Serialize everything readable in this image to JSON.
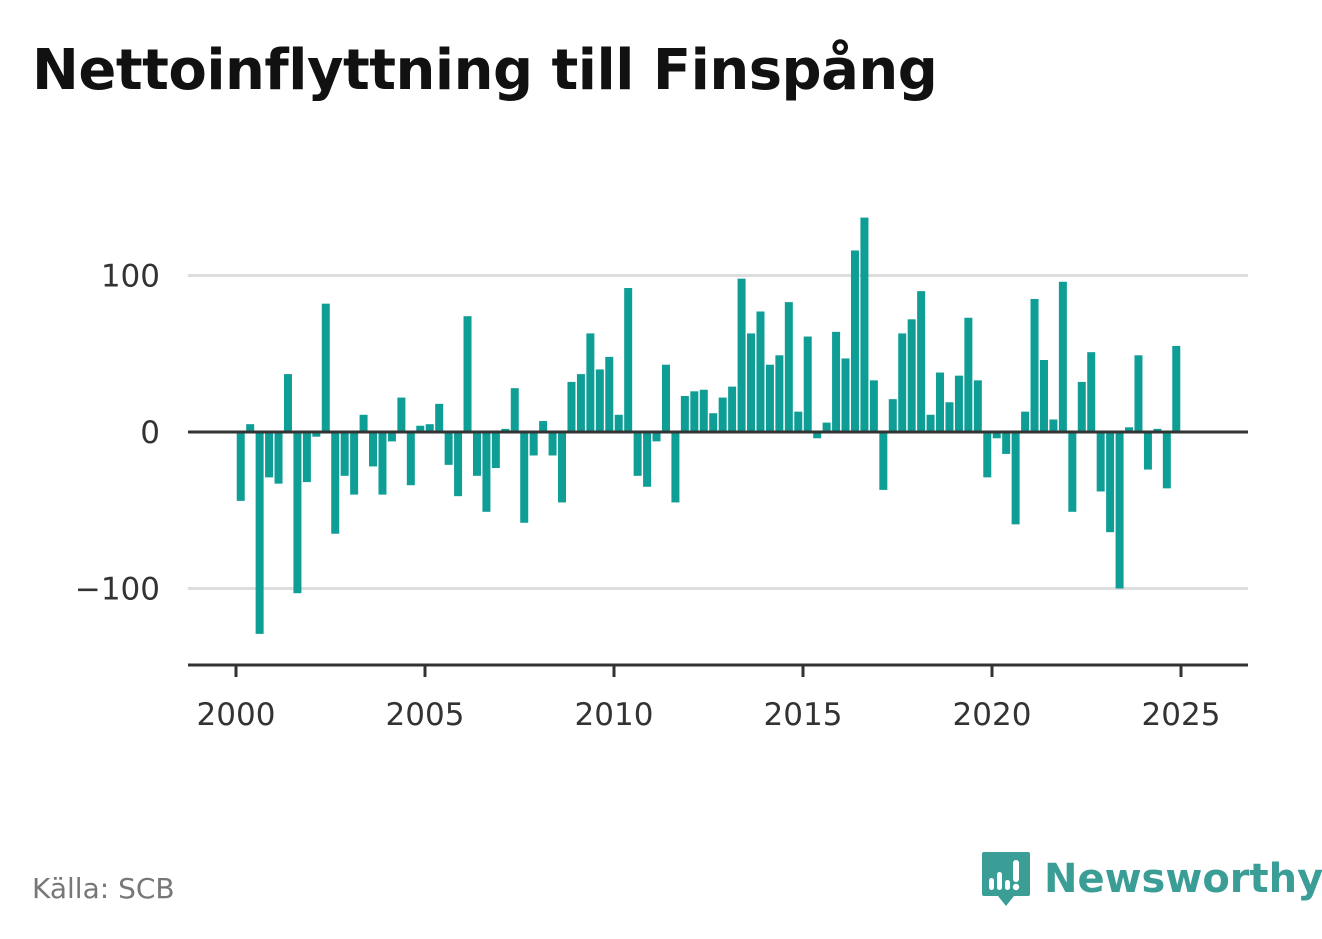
{
  "title": "Nettoinflyttning till Finspång",
  "source": "Källa: SCB",
  "brand": "Newsworthy",
  "colors": {
    "bar": "#0f9e96",
    "axis": "#333333",
    "grid": "#dddddd",
    "brand": "#3a9e96"
  },
  "chart_data": {
    "type": "bar",
    "ylim": [
      -150,
      160
    ],
    "xlim": [
      1999.6,
      2027.0
    ],
    "yticks": [
      100,
      0,
      -100
    ],
    "ytick_labels": [
      "100",
      "0",
      "−100"
    ],
    "xticks": [
      2000,
      2005,
      2010,
      2015,
      2020,
      2025
    ],
    "xtick_labels": [
      "2000",
      "2005",
      "2010",
      "2015",
      "2020",
      "2025"
    ],
    "grid": true,
    "x_start": 2000.125,
    "x_step": 0.25,
    "values": [
      -44,
      5,
      -129,
      -29,
      -33,
      37,
      -103,
      -32,
      -3,
      82,
      -65,
      -28,
      -40,
      11,
      -22,
      -40,
      -6,
      22,
      -34,
      4,
      5,
      18,
      -21,
      -41,
      74,
      -28,
      -51,
      -23,
      2,
      28,
      -58,
      -15,
      7,
      -15,
      -45,
      32,
      37,
      63,
      40,
      48,
      11,
      92,
      -28,
      -35,
      -6,
      43,
      -45,
      23,
      26,
      27,
      12,
      22,
      29,
      98,
      63,
      77,
      43,
      49,
      83,
      13,
      61,
      -4,
      6,
      64,
      47,
      116,
      137,
      33,
      -37,
      21,
      63,
      72,
      90,
      11,
      38,
      19,
      36,
      73,
      33,
      -29,
      -4,
      -14,
      -59,
      13,
      85,
      46,
      8,
      96,
      -51,
      32,
      51,
      -38,
      -64,
      -100,
      3,
      49,
      -24,
      2,
      -36,
      55
    ]
  }
}
